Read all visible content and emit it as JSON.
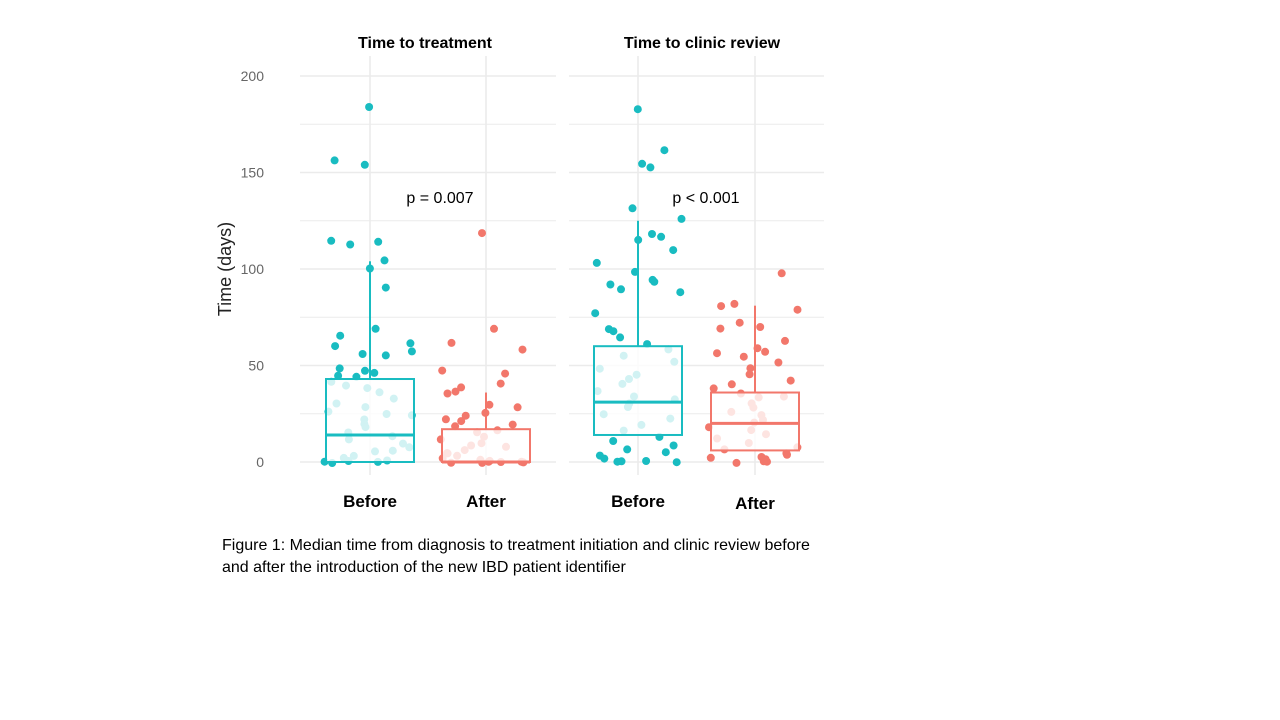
{
  "caption": {
    "line1": "Figure 1: Median time from diagnosis to treatment initiation and clinic review before",
    "line2": "and after the introduction of the new IBD patient identifier"
  },
  "colors": {
    "before": "#19bcc1",
    "after": "#f2776b",
    "grid": "#ebebeb"
  },
  "chart_data": [
    {
      "type": "box",
      "title": "Time to treatment",
      "xlabel": "",
      "ylabel": "Time (days)",
      "ylim": [
        0,
        200
      ],
      "yticks": [
        0,
        50,
        100,
        150,
        200
      ],
      "categories": [
        "Before",
        "After"
      ],
      "annotation": "p = 0.007",
      "grid": true,
      "boxes": [
        {
          "name": "Before",
          "q1": 0,
          "median": 14,
          "q3": 43,
          "whisker_low": 0,
          "whisker_high": 104
        },
        {
          "name": "After",
          "q1": 0,
          "median": 0,
          "q3": 17,
          "whisker_low": 0,
          "whisker_high": 36
        }
      ],
      "points": {
        "Before": [
          184,
          156,
          154,
          115,
          114,
          113,
          104,
          100,
          90,
          69,
          65,
          62,
          60,
          57,
          56,
          55,
          49,
          47,
          46,
          45,
          44,
          42,
          40,
          38,
          36,
          33,
          30,
          28,
          26,
          25,
          24,
          22,
          20,
          18,
          15,
          13,
          12,
          10,
          8,
          6,
          5,
          3,
          2,
          1,
          1,
          0,
          0,
          0
        ],
        "After": [
          119,
          69,
          62,
          58,
          47,
          46,
          41,
          39,
          36,
          35,
          30,
          28,
          25,
          24,
          22,
          21,
          19,
          18,
          16,
          15,
          13,
          12,
          10,
          9,
          8,
          6,
          5,
          4,
          3,
          2,
          1,
          1,
          0,
          0,
          0,
          0,
          0,
          0
        ]
      }
    },
    {
      "type": "box",
      "title": "Time to clinic review",
      "xlabel": "",
      "ylabel": "",
      "ylim": [
        0,
        200
      ],
      "yticks": [
        0,
        50,
        100,
        150,
        200
      ],
      "categories": [
        "Before",
        "After"
      ],
      "annotation": "p < 0.001",
      "grid": true,
      "boxes": [
        {
          "name": "Before",
          "q1": 14,
          "median": 31,
          "q3": 60,
          "whisker_low": 0,
          "whisker_high": 125
        },
        {
          "name": "After",
          "q1": 6,
          "median": 20,
          "q3": 36,
          "whisker_low": 0,
          "whisker_high": 81
        }
      ],
      "points": {
        "Before": [
          183,
          162,
          155,
          153,
          131,
          126,
          118,
          117,
          115,
          110,
          103,
          99,
          94,
          93,
          92,
          89,
          88,
          77,
          69,
          68,
          65,
          61,
          58,
          55,
          52,
          48,
          45,
          43,
          40,
          37,
          34,
          32,
          30,
          28,
          25,
          22,
          19,
          16,
          13,
          11,
          9,
          7,
          5,
          3,
          2,
          1,
          0,
          0,
          0
        ],
        "After": [
          98,
          82,
          81,
          79,
          72,
          70,
          69,
          63,
          59,
          57,
          56,
          55,
          52,
          49,
          45,
          42,
          40,
          38,
          36,
          34,
          33,
          30,
          28,
          26,
          24,
          22,
          20,
          18,
          16,
          14,
          12,
          10,
          8,
          6,
          5,
          4,
          3,
          2,
          1,
          0,
          0,
          0
        ]
      }
    }
  ]
}
